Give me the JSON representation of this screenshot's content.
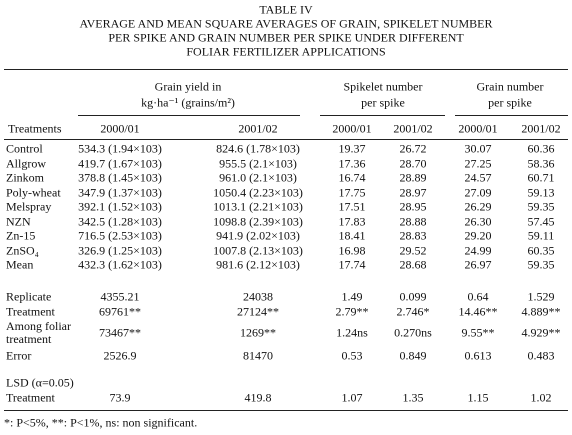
{
  "title_lines": [
    "TABLE IV",
    "AVERAGE AND MEAN SQUARE AVERAGES OF GRAIN, SPIKELET NUMBER",
    "PER SPIKE AND GRAIN NUMBER PER SPIKE UNDER DIFFERENT",
    "FOLIAR FERTILIZER APPLICATIONS"
  ],
  "header": {
    "group_headers": [
      [
        "Grain yield in",
        "kg·ha⁻¹ (grains/m²)"
      ],
      [
        "Spikelet number",
        "per spike"
      ],
      [
        "Grain number",
        "per spike"
      ]
    ],
    "row_label": "Treatments",
    "years": [
      "2000/01",
      "2001/02",
      "2000/01",
      "2001/02",
      "2000/01",
      "2001/02"
    ]
  },
  "table": {
    "rows": [
      [
        "Control",
        "534.3 (1.94×103)",
        "824.6 (1.78×103)",
        "19.37",
        "26.72",
        "30.07",
        "60.36"
      ],
      [
        "Allgrow",
        "419.7 (1.67×103)",
        "955.5 (2.1×103)",
        "17.36",
        "28.70",
        "27.25",
        "58.36"
      ],
      [
        "Zinkom",
        "378.8 (1.45×103)",
        "961.0 (2.1×103)",
        "16.74",
        "28.89",
        "24.57",
        "60.71"
      ],
      [
        "Poly-wheat",
        "347.9 (1.37×103)",
        "1050.4 (2.23×103)",
        "17.75",
        "28.97",
        "27.09",
        "59.13"
      ],
      [
        "Melspray",
        "392.1 (1.52×103)",
        "1013.1 (2.21×103)",
        "17.51",
        "28.95",
        "26.29",
        "59.35"
      ],
      [
        "NZN",
        "342.5 (1.28×103)",
        "1098.8 (2.39×103)",
        "17.83",
        "28.88",
        "26.30",
        "57.45"
      ],
      [
        "Zn-15",
        "716.5 (2.53×103)",
        "941.9 (2.02×103)",
        "18.41",
        "28.83",
        "29.20",
        "59.11"
      ],
      [
        "ZnSO₄",
        "326.9 (1.25×103)",
        "1007.8 (2.13×103)",
        "16.98",
        "29.52",
        "24.99",
        "60.35"
      ],
      [
        "Mean",
        "432.3 (1.62×103)",
        "981.6 (2.12×103)",
        "17.74",
        "28.68",
        "26.97",
        "59.35"
      ]
    ]
  },
  "stats": {
    "rows": [
      [
        "Replicate",
        "4355.21",
        "24038",
        "1.49",
        "0.099",
        "0.64",
        "1.529"
      ],
      [
        "Treatment",
        "69761**",
        "27124**",
        "2.79**",
        "2.746*",
        "14.46**",
        "4.889**"
      ],
      [
        "Among foliar treatment",
        "73467**",
        "1269**",
        "1.24ns",
        "0.270ns",
        "9.55**",
        "4.929**"
      ],
      [
        "Error",
        "2526.9",
        "81470",
        "0.53",
        "0.849",
        "0.613",
        "0.483"
      ]
    ]
  },
  "lsd": {
    "label": "LSD (α=0.05)",
    "rows": [
      [
        "Treatment",
        "73.9",
        "419.8",
        "1.07",
        "1.35",
        "1.15",
        "1.02"
      ]
    ]
  },
  "footnote": "*: P<5%, **: P<1%, ns: non significant."
}
